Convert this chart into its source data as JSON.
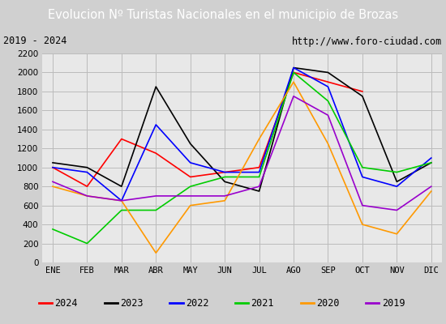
{
  "title": "Evolucion Nº Turistas Nacionales en el municipio de Brozas",
  "subtitle_left": "2019 - 2024",
  "subtitle_right": "http://www.foro-ciudad.com",
  "title_bg": "#4472c4",
  "months": [
    "ENE",
    "FEB",
    "MAR",
    "ABR",
    "MAY",
    "JUN",
    "JUL",
    "AGO",
    "SEP",
    "OCT",
    "NOV",
    "DIC"
  ],
  "ylim": [
    0,
    2200
  ],
  "yticks": [
    0,
    200,
    400,
    600,
    800,
    1000,
    1200,
    1400,
    1600,
    1800,
    2000,
    2200
  ],
  "series": {
    "2024": {
      "color": "#ff0000",
      "data": [
        1000,
        800,
        1300,
        1150,
        900,
        950,
        1000,
        2000,
        1900,
        1800,
        null,
        null
      ]
    },
    "2023": {
      "color": "#000000",
      "data": [
        1050,
        1000,
        800,
        1850,
        1250,
        850,
        750,
        2050,
        2000,
        1750,
        850,
        1050
      ]
    },
    "2022": {
      "color": "#0000ff",
      "data": [
        1000,
        950,
        650,
        1450,
        1050,
        950,
        950,
        2050,
        1850,
        900,
        800,
        1100
      ]
    },
    "2021": {
      "color": "#00cc00",
      "data": [
        350,
        200,
        550,
        550,
        800,
        900,
        900,
        2000,
        1700,
        1000,
        950,
        1050
      ]
    },
    "2020": {
      "color": "#ff9900",
      "data": [
        800,
        700,
        650,
        100,
        600,
        650,
        1300,
        1900,
        1250,
        400,
        300,
        750
      ]
    },
    "2019": {
      "color": "#9900cc",
      "data": [
        850,
        700,
        650,
        700,
        700,
        700,
        800,
        1750,
        1550,
        600,
        550,
        800
      ]
    }
  },
  "legend_order": [
    "2024",
    "2023",
    "2022",
    "2021",
    "2020",
    "2019"
  ],
  "fig_bg": "#d0d0d0",
  "plot_bg": "#e8e8e8",
  "grid_color": "#bbbbbb",
  "subtitle_bg": "#f0f0f0"
}
